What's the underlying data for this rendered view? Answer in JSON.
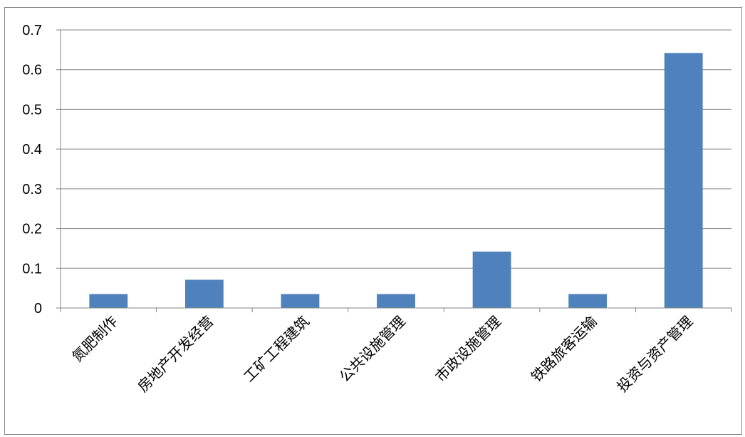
{
  "chart_data": {
    "type": "bar",
    "categories": [
      "氮肥制作",
      "房地产开发经营",
      "工矿工程建筑",
      "公共设施管理",
      "市政设施管理",
      "铁路旅客运输",
      "投资与资产管理"
    ],
    "values": [
      0.035,
      0.071,
      0.035,
      0.035,
      0.142,
      0.035,
      0.642
    ],
    "ylim": [
      0,
      0.7
    ],
    "yticks": [
      "0",
      "0.1",
      "0.2",
      "0.3",
      "0.4",
      "0.5",
      "0.6",
      "0.7"
    ],
    "grid": true,
    "legend": "none",
    "bar_color": "#4f81bd",
    "grid_color": "#868686"
  }
}
